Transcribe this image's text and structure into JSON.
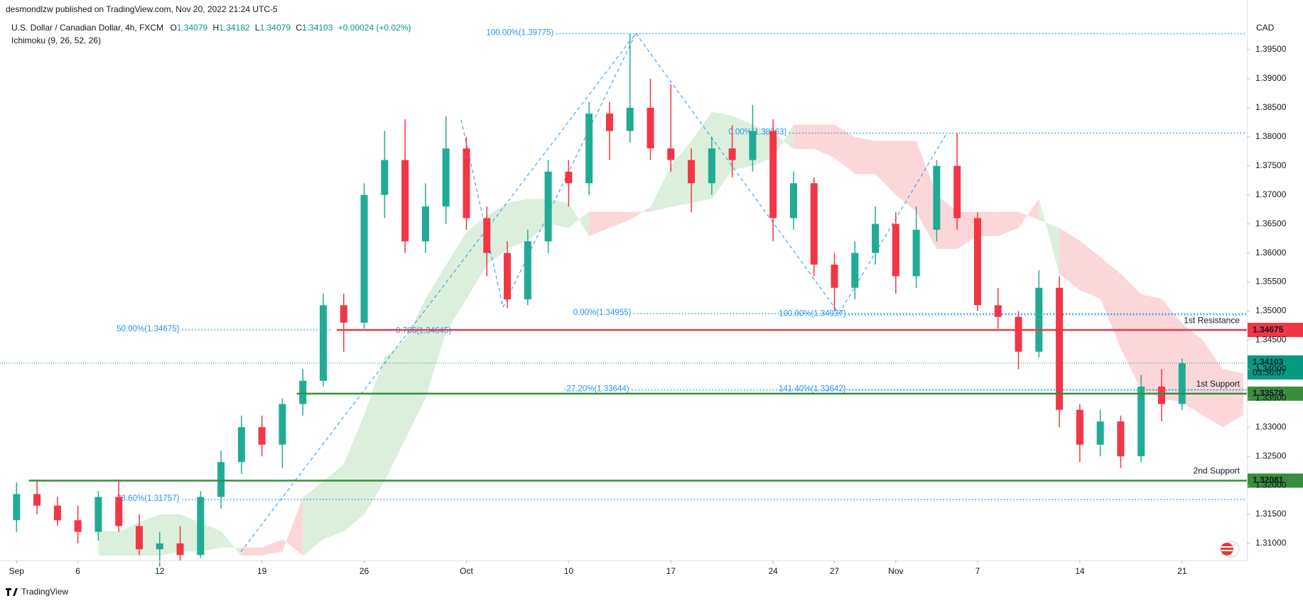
{
  "header": {
    "publisher": "desmondlzw published on TradingView.com, Nov 20, 2022 21:24 UTC-5",
    "footer": "TradingView"
  },
  "chart_data": {
    "type": "candlestick",
    "title": "U.S. Dollar / Canadian Dollar, 4h, FXCM",
    "legend_ohlc": [
      {
        "key": "O",
        "value": "1.34079"
      },
      {
        "key": "H",
        "value": "1.34182"
      },
      {
        "key": "L",
        "value": "1.34079"
      },
      {
        "key": "C",
        "value": "1.34103"
      }
    ],
    "legend_change": "+0.00024 (+0.02%)",
    "indicator": "Ichimoku (9, 26, 52, 26)",
    "currency": "CAD",
    "up_color": "#22ab94",
    "down_color": "#f23645",
    "grid": false,
    "x": [
      0,
      1,
      2,
      3,
      4,
      5,
      6,
      7,
      8,
      9,
      10,
      11,
      12,
      13,
      14,
      15,
      16,
      17,
      18,
      19,
      20,
      21,
      22,
      23,
      24,
      25,
      26,
      27,
      28,
      29,
      30,
      31,
      32,
      33,
      34,
      35,
      36,
      37,
      38,
      39,
      40,
      41,
      42,
      43,
      44,
      45,
      46,
      47,
      48,
      49,
      50,
      51,
      52,
      53,
      54,
      55,
      56,
      57
    ],
    "open": [
      1.314,
      1.3185,
      1.3165,
      1.314,
      1.312,
      1.318,
      1.313,
      1.309,
      1.31,
      1.308,
      1.318,
      1.324,
      1.33,
      1.327,
      1.334,
      1.338,
      1.351,
      1.348,
      1.37,
      1.376,
      1.362,
      1.368,
      1.378,
      1.366,
      1.36,
      1.352,
      1.362,
      1.374,
      1.372,
      1.384,
      1.381,
      1.385,
      1.378,
      1.376,
      1.372,
      1.378,
      1.376,
      1.381,
      1.366,
      1.372,
      1.358,
      1.354,
      1.36,
      1.365,
      1.356,
      1.364,
      1.375,
      1.366,
      1.351,
      1.349,
      1.343,
      1.354,
      1.333,
      1.327,
      1.331,
      1.325,
      1.337,
      1.334
    ],
    "high": [
      1.3205,
      1.321,
      1.318,
      1.3165,
      1.319,
      1.321,
      1.315,
      1.312,
      1.313,
      1.319,
      1.326,
      1.332,
      1.332,
      1.335,
      1.34,
      1.353,
      1.353,
      1.372,
      1.381,
      1.383,
      1.372,
      1.3835,
      1.38,
      1.368,
      1.362,
      1.364,
      1.376,
      1.376,
      1.386,
      1.386,
      1.3977,
      1.39,
      1.389,
      1.378,
      1.38,
      1.382,
      1.3855,
      1.383,
      1.374,
      1.373,
      1.36,
      1.362,
      1.368,
      1.367,
      1.368,
      1.376,
      1.3806,
      1.367,
      1.354,
      1.35,
      1.357,
      1.356,
      1.334,
      1.333,
      1.332,
      1.339,
      1.34,
      1.3418
    ],
    "low": [
      1.312,
      1.315,
      1.313,
      1.31,
      1.3105,
      1.312,
      1.308,
      1.306,
      1.307,
      1.3075,
      1.316,
      1.322,
      1.325,
      1.323,
      1.332,
      1.337,
      1.343,
      1.347,
      1.366,
      1.36,
      1.36,
      1.365,
      1.364,
      1.356,
      1.3505,
      1.351,
      1.36,
      1.368,
      1.37,
      1.376,
      1.379,
      1.376,
      1.374,
      1.367,
      1.37,
      1.373,
      1.374,
      1.362,
      1.364,
      1.356,
      1.35,
      1.352,
      1.358,
      1.353,
      1.354,
      1.362,
      1.364,
      1.35,
      1.347,
      1.34,
      1.342,
      1.33,
      1.324,
      1.325,
      1.323,
      1.324,
      1.331,
      1.333
    ],
    "close": [
      1.3185,
      1.3165,
      1.314,
      1.312,
      1.318,
      1.313,
      1.309,
      1.31,
      1.308,
      1.318,
      1.324,
      1.33,
      1.327,
      1.334,
      1.338,
      1.351,
      1.348,
      1.37,
      1.376,
      1.362,
      1.368,
      1.378,
      1.366,
      1.36,
      1.352,
      1.362,
      1.374,
      1.372,
      1.384,
      1.381,
      1.385,
      1.378,
      1.376,
      1.372,
      1.378,
      1.376,
      1.381,
      1.366,
      1.372,
      1.358,
      1.354,
      1.36,
      1.365,
      1.356,
      1.364,
      1.375,
      1.366,
      1.351,
      1.349,
      1.343,
      1.354,
      1.333,
      1.327,
      1.331,
      1.325,
      1.337,
      1.334,
      1.341
    ],
    "cloud": {
      "up_color": "rgba(76,175,80,0.2)",
      "down_color": "rgba(242,54,69,0.2)",
      "x": [
        4,
        5,
        6,
        7,
        8,
        9,
        10,
        11,
        12,
        13,
        14,
        15,
        16,
        17,
        18,
        19,
        20,
        21,
        22,
        23,
        24,
        25,
        26,
        27,
        28,
        29,
        30,
        31,
        32,
        33,
        34,
        35,
        36,
        37,
        38,
        39,
        40,
        41,
        42,
        43,
        44,
        45,
        46,
        47,
        48,
        49,
        50,
        51,
        52,
        53,
        54,
        55,
        56,
        57,
        58,
        59,
        60
      ],
      "span_a": [
        1.3121,
        1.3121,
        1.3136,
        1.315,
        1.315,
        1.3136,
        1.3121,
        1.3079,
        1.3079,
        1.3086,
        1.3179,
        1.3207,
        1.3236,
        1.3321,
        1.3421,
        1.345,
        1.3521,
        1.3579,
        1.3636,
        1.3664,
        1.3686,
        1.3693,
        1.3693,
        1.3686,
        1.3629,
        1.3643,
        1.3657,
        1.3679,
        1.375,
        1.3793,
        1.3843,
        1.3836,
        1.3821,
        1.3807,
        1.3779,
        1.3779,
        1.3764,
        1.3736,
        1.3736,
        1.37,
        1.3671,
        1.3607,
        1.3607,
        1.3629,
        1.3629,
        1.3643,
        1.3693,
        1.3564,
        1.3536,
        1.3521,
        1.3436,
        1.3364,
        1.335,
        1.3343,
        1.3321,
        1.33,
        1.3321
      ],
      "span_b": [
        1.3079,
        1.3079,
        1.3079,
        1.3079,
        1.3086,
        1.3086,
        1.3093,
        1.3093,
        1.3093,
        1.3107,
        1.3079,
        1.3107,
        1.3121,
        1.315,
        1.3207,
        1.3279,
        1.335,
        1.3464,
        1.3521,
        1.3579,
        1.3607,
        1.3621,
        1.365,
        1.3643,
        1.3671,
        1.3671,
        1.3671,
        1.3671,
        1.3679,
        1.3686,
        1.3693,
        1.3743,
        1.375,
        1.3764,
        1.3821,
        1.3821,
        1.3821,
        1.38,
        1.3793,
        1.3793,
        1.3793,
        1.37,
        1.3671,
        1.3671,
        1.3671,
        1.3671,
        1.3657,
        1.3643,
        1.3621,
        1.3593,
        1.3564,
        1.3529,
        1.3521,
        1.3479,
        1.345,
        1.34,
        1.3393
      ]
    },
    "levels": [
      {
        "name": "1st Resistance",
        "value": 1.34675,
        "value_label": "1.34675",
        "color": "#f23645",
        "from": 15.65
      },
      {
        "name": "1st Support",
        "value": 1.33578,
        "value_label": "1.33578",
        "color": "#388e3c",
        "from": 13.7
      },
      {
        "name": "2nd Support",
        "value": 1.32081,
        "value_label": "1.32081",
        "color": "#388e3c",
        "from": 0.6
      }
    ],
    "current_price": {
      "value": 1.34103,
      "label": "1.34103",
      "countdown": "03:36:07",
      "color": "#089981"
    },
    "fib_levels": [
      {
        "label": "100.00%(1.39775)",
        "value": 1.39775,
        "from": 26.4
      },
      {
        "label": "0.00%(1.38063)",
        "value": 1.38063,
        "from": 37.8
      },
      {
        "label": "0.00%(1.34955)",
        "value": 1.34955,
        "from": 30.2
      },
      {
        "label": "100.00%(1.34937)",
        "value": 1.34937,
        "from": 40.7
      },
      {
        "label": "50.00%(1.34675)",
        "value": 1.34675,
        "from": 8.1,
        "to": 15.4
      },
      {
        "label": "0.786(1.34645)",
        "value": 1.34645,
        "from": 21.4,
        "to": 21.4
      },
      {
        "label": "-27.20%(1.33644)",
        "value": 1.33644,
        "from": 30.1
      },
      {
        "label": "141.40%(1.33642)",
        "value": 1.33642,
        "from": 40.7
      },
      {
        "label": "78.60%(1.31757)",
        "value": 1.31757,
        "from": 8.1
      }
    ],
    "xlim": [
      -0.81,
      60.17
    ],
    "xticks": [
      {
        "value": 0,
        "label": "Sep"
      },
      {
        "value": 3,
        "label": "6"
      },
      {
        "value": 7,
        "label": "12"
      },
      {
        "value": 12,
        "label": "19"
      },
      {
        "value": 17,
        "label": "26"
      },
      {
        "value": 22,
        "label": "Oct"
      },
      {
        "value": 27,
        "label": "10"
      },
      {
        "value": 32,
        "label": "17"
      },
      {
        "value": 37,
        "label": "24"
      },
      {
        "value": 40,
        "label": "27"
      },
      {
        "value": 43,
        "label": "Nov"
      },
      {
        "value": 47,
        "label": "7"
      },
      {
        "value": 52,
        "label": "14"
      },
      {
        "value": 57,
        "label": "21"
      }
    ],
    "ylim": [
      1.30707,
      1.40355
    ],
    "yticks": [
      {
        "value": 1.31,
        "label": "1.31000"
      },
      {
        "value": 1.315,
        "label": "1.31500"
      },
      {
        "value": 1.32,
        "label": "1.32000"
      },
      {
        "value": 1.325,
        "label": "1.32500"
      },
      {
        "value": 1.33,
        "label": "1.33000"
      },
      {
        "value": 1.335,
        "label": "1.33500"
      },
      {
        "value": 1.34,
        "label": "1.34000"
      },
      {
        "value": 1.345,
        "label": "1.34500"
      },
      {
        "value": 1.35,
        "label": "1.35000"
      },
      {
        "value": 1.355,
        "label": "1.35500"
      },
      {
        "value": 1.36,
        "label": "1.36000"
      },
      {
        "value": 1.365,
        "label": "1.36500"
      },
      {
        "value": 1.37,
        "label": "1.37000"
      },
      {
        "value": 1.375,
        "label": "1.37500"
      },
      {
        "value": 1.38,
        "label": "1.38000"
      },
      {
        "value": 1.385,
        "label": "1.38500"
      },
      {
        "value": 1.39,
        "label": "1.39000"
      },
      {
        "value": 1.395,
        "label": "1.39500"
      }
    ]
  }
}
